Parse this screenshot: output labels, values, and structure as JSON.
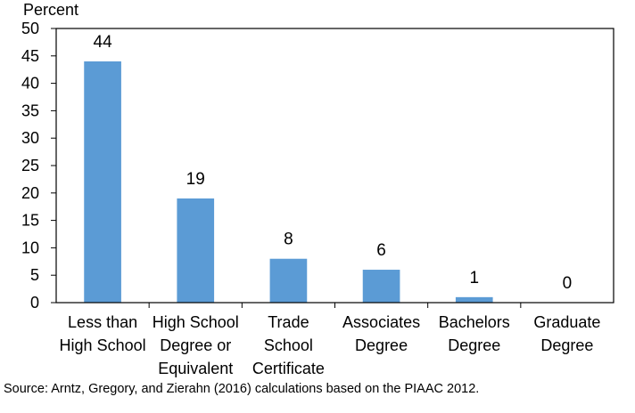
{
  "chart_data": {
    "type": "bar",
    "title": "",
    "xlabel": "",
    "ylabel": "Percent",
    "ylim": [
      0,
      50
    ],
    "yticks": [
      0,
      5,
      10,
      15,
      20,
      25,
      30,
      35,
      40,
      45,
      50
    ],
    "grid": false,
    "legend": "none",
    "bar_color": "#5b9bd5",
    "categories": [
      [
        "Less than",
        "High School"
      ],
      [
        "High School",
        "Degree or",
        "Equivalent"
      ],
      [
        "Trade",
        "School",
        "Certificate"
      ],
      [
        "Associates",
        "Degree"
      ],
      [
        "Bachelors",
        "Degree"
      ],
      [
        "Graduate",
        "Degree"
      ]
    ],
    "values": [
      44,
      19,
      8,
      6,
      1,
      0
    ],
    "data_labels": [
      "44",
      "19",
      "8",
      "6",
      "1",
      "0"
    ]
  },
  "source": "Source: Arntz, Gregory, and Zierahn (2016) calculations based on the PIAAC 2012."
}
